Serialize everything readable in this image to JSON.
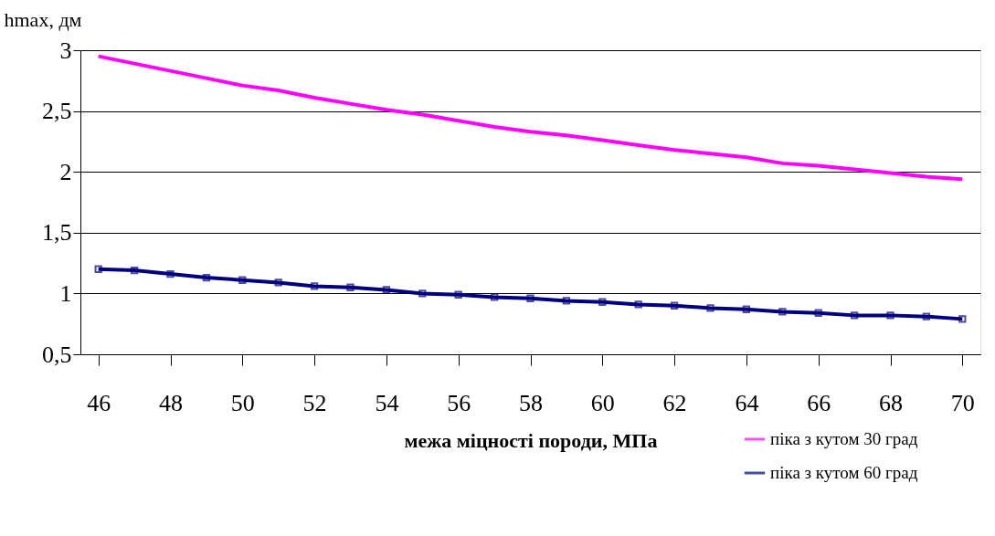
{
  "chart_data": {
    "type": "line",
    "xlabel": "межа міцності породи, МПа",
    "ylabel": "hmax, дм",
    "x": [
      46,
      47,
      48,
      49,
      50,
      51,
      52,
      53,
      54,
      55,
      56,
      57,
      58,
      59,
      60,
      61,
      62,
      63,
      64,
      65,
      66,
      67,
      68,
      69,
      70
    ],
    "series": [
      {
        "name": "піка з кутом 30 град",
        "color": "#ff00ff",
        "marker": "none",
        "values": [
          2.95,
          2.89,
          2.83,
          2.77,
          2.71,
          2.67,
          2.61,
          2.56,
          2.51,
          2.47,
          2.42,
          2.37,
          2.33,
          2.3,
          2.26,
          2.22,
          2.18,
          2.15,
          2.12,
          2.07,
          2.05,
          2.02,
          1.99,
          1.96,
          1.94
        ]
      },
      {
        "name": "піка з кутом 60 град",
        "color": "#000080",
        "marker": "square",
        "values": [
          1.2,
          1.19,
          1.16,
          1.13,
          1.11,
          1.09,
          1.06,
          1.05,
          1.03,
          1.0,
          0.99,
          0.97,
          0.96,
          0.94,
          0.93,
          0.91,
          0.9,
          0.88,
          0.87,
          0.85,
          0.84,
          0.82,
          0.82,
          0.81,
          0.79
        ]
      }
    ],
    "xlim": [
      45.5,
      70.5
    ],
    "xticks": [
      46,
      48,
      50,
      52,
      54,
      56,
      58,
      60,
      62,
      64,
      66,
      68,
      70
    ],
    "ylim": [
      0.5,
      3
    ],
    "yticks": [
      {
        "value": 0.5,
        "label": "0,5"
      },
      1,
      {
        "value": 1.5,
        "label": "1,5"
      },
      2,
      {
        "value": 2.5,
        "label": "2,5"
      },
      3
    ],
    "grid": "y",
    "legend": "bottom right",
    "line_style": "solid"
  }
}
